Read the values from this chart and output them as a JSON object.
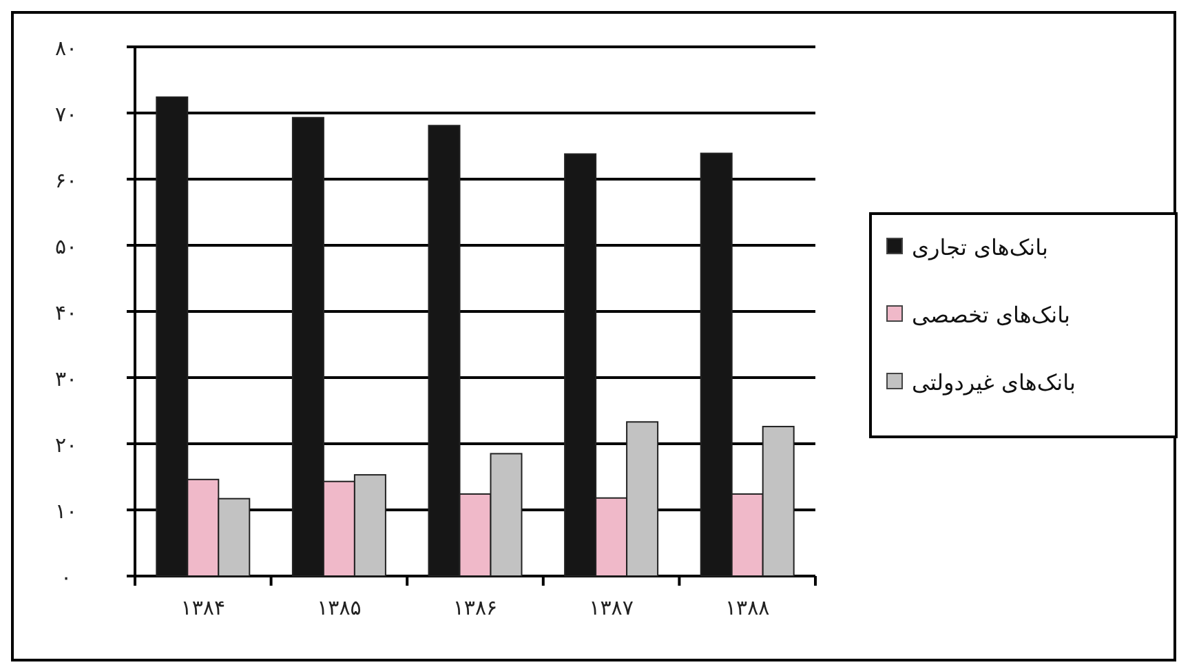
{
  "chart_data": {
    "type": "bar",
    "categories": [
      "۱۳۸۴",
      "۱۳۸۵",
      "۱۳۸۶",
      "۱۳۸۷",
      "۱۳۸۸"
    ],
    "series": [
      {
        "name": "بانک‌های تجاری",
        "color": "#161616",
        "values": [
          72.4,
          69.3,
          68.1,
          63.8,
          63.9
        ]
      },
      {
        "name": "بانک‌های تخصصی",
        "color": "#f0b9c9",
        "values": [
          14.6,
          14.3,
          12.4,
          11.8,
          12.4
        ]
      },
      {
        "name": "بانک‌های غیردولتی",
        "color": "#c2c2c2",
        "values": [
          11.7,
          15.3,
          18.5,
          23.3,
          22.6
        ]
      }
    ],
    "ylim": [
      0,
      80
    ],
    "yticks": [
      {
        "value": 0,
        "label": "۰"
      },
      {
        "value": 10,
        "label": "۱۰"
      },
      {
        "value": 20,
        "label": "۲۰"
      },
      {
        "value": 30,
        "label": "۳۰"
      },
      {
        "value": 40,
        "label": "۴۰"
      },
      {
        "value": 50,
        "label": "۵۰"
      },
      {
        "value": 60,
        "label": "۶۰"
      },
      {
        "value": 70,
        "label": "۷۰"
      },
      {
        "value": 80,
        "label": "۸۰"
      }
    ],
    "grid": "y",
    "legend": "right"
  }
}
